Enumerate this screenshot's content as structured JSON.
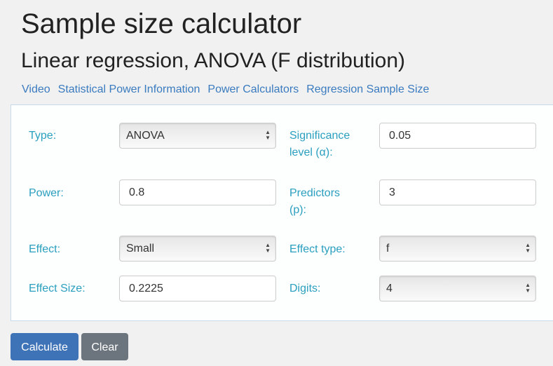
{
  "title": "Sample size calculator",
  "subtitle": "Linear regression, ANOVA (F distribution)",
  "links": [
    "Video",
    "Statistical Power Information",
    "Power Calculators",
    "Regression Sample Size"
  ],
  "form": {
    "type": {
      "label": "Type:",
      "value": "ANOVA"
    },
    "significance": {
      "label1": "Significance",
      "label2": "level (α):",
      "value": "0.05"
    },
    "power": {
      "label": "Power:",
      "value": "0.8"
    },
    "predictors": {
      "label1": "Predictors",
      "label2": "(p):",
      "value": "3"
    },
    "effect": {
      "label": "Effect:",
      "value": "Small"
    },
    "effect_type": {
      "label": "Effect type:",
      "value": "f"
    },
    "effect_size": {
      "label": "Effect Size:",
      "value": "0.2225"
    },
    "digits": {
      "label": "Digits:",
      "value": "4"
    }
  },
  "buttons": {
    "calculate": "Calculate",
    "clear": "Clear"
  },
  "colors": {
    "label": "#2a9fbf",
    "link": "#3a7bbf",
    "primary": "#3f73b8",
    "secondary": "#6c757d"
  }
}
